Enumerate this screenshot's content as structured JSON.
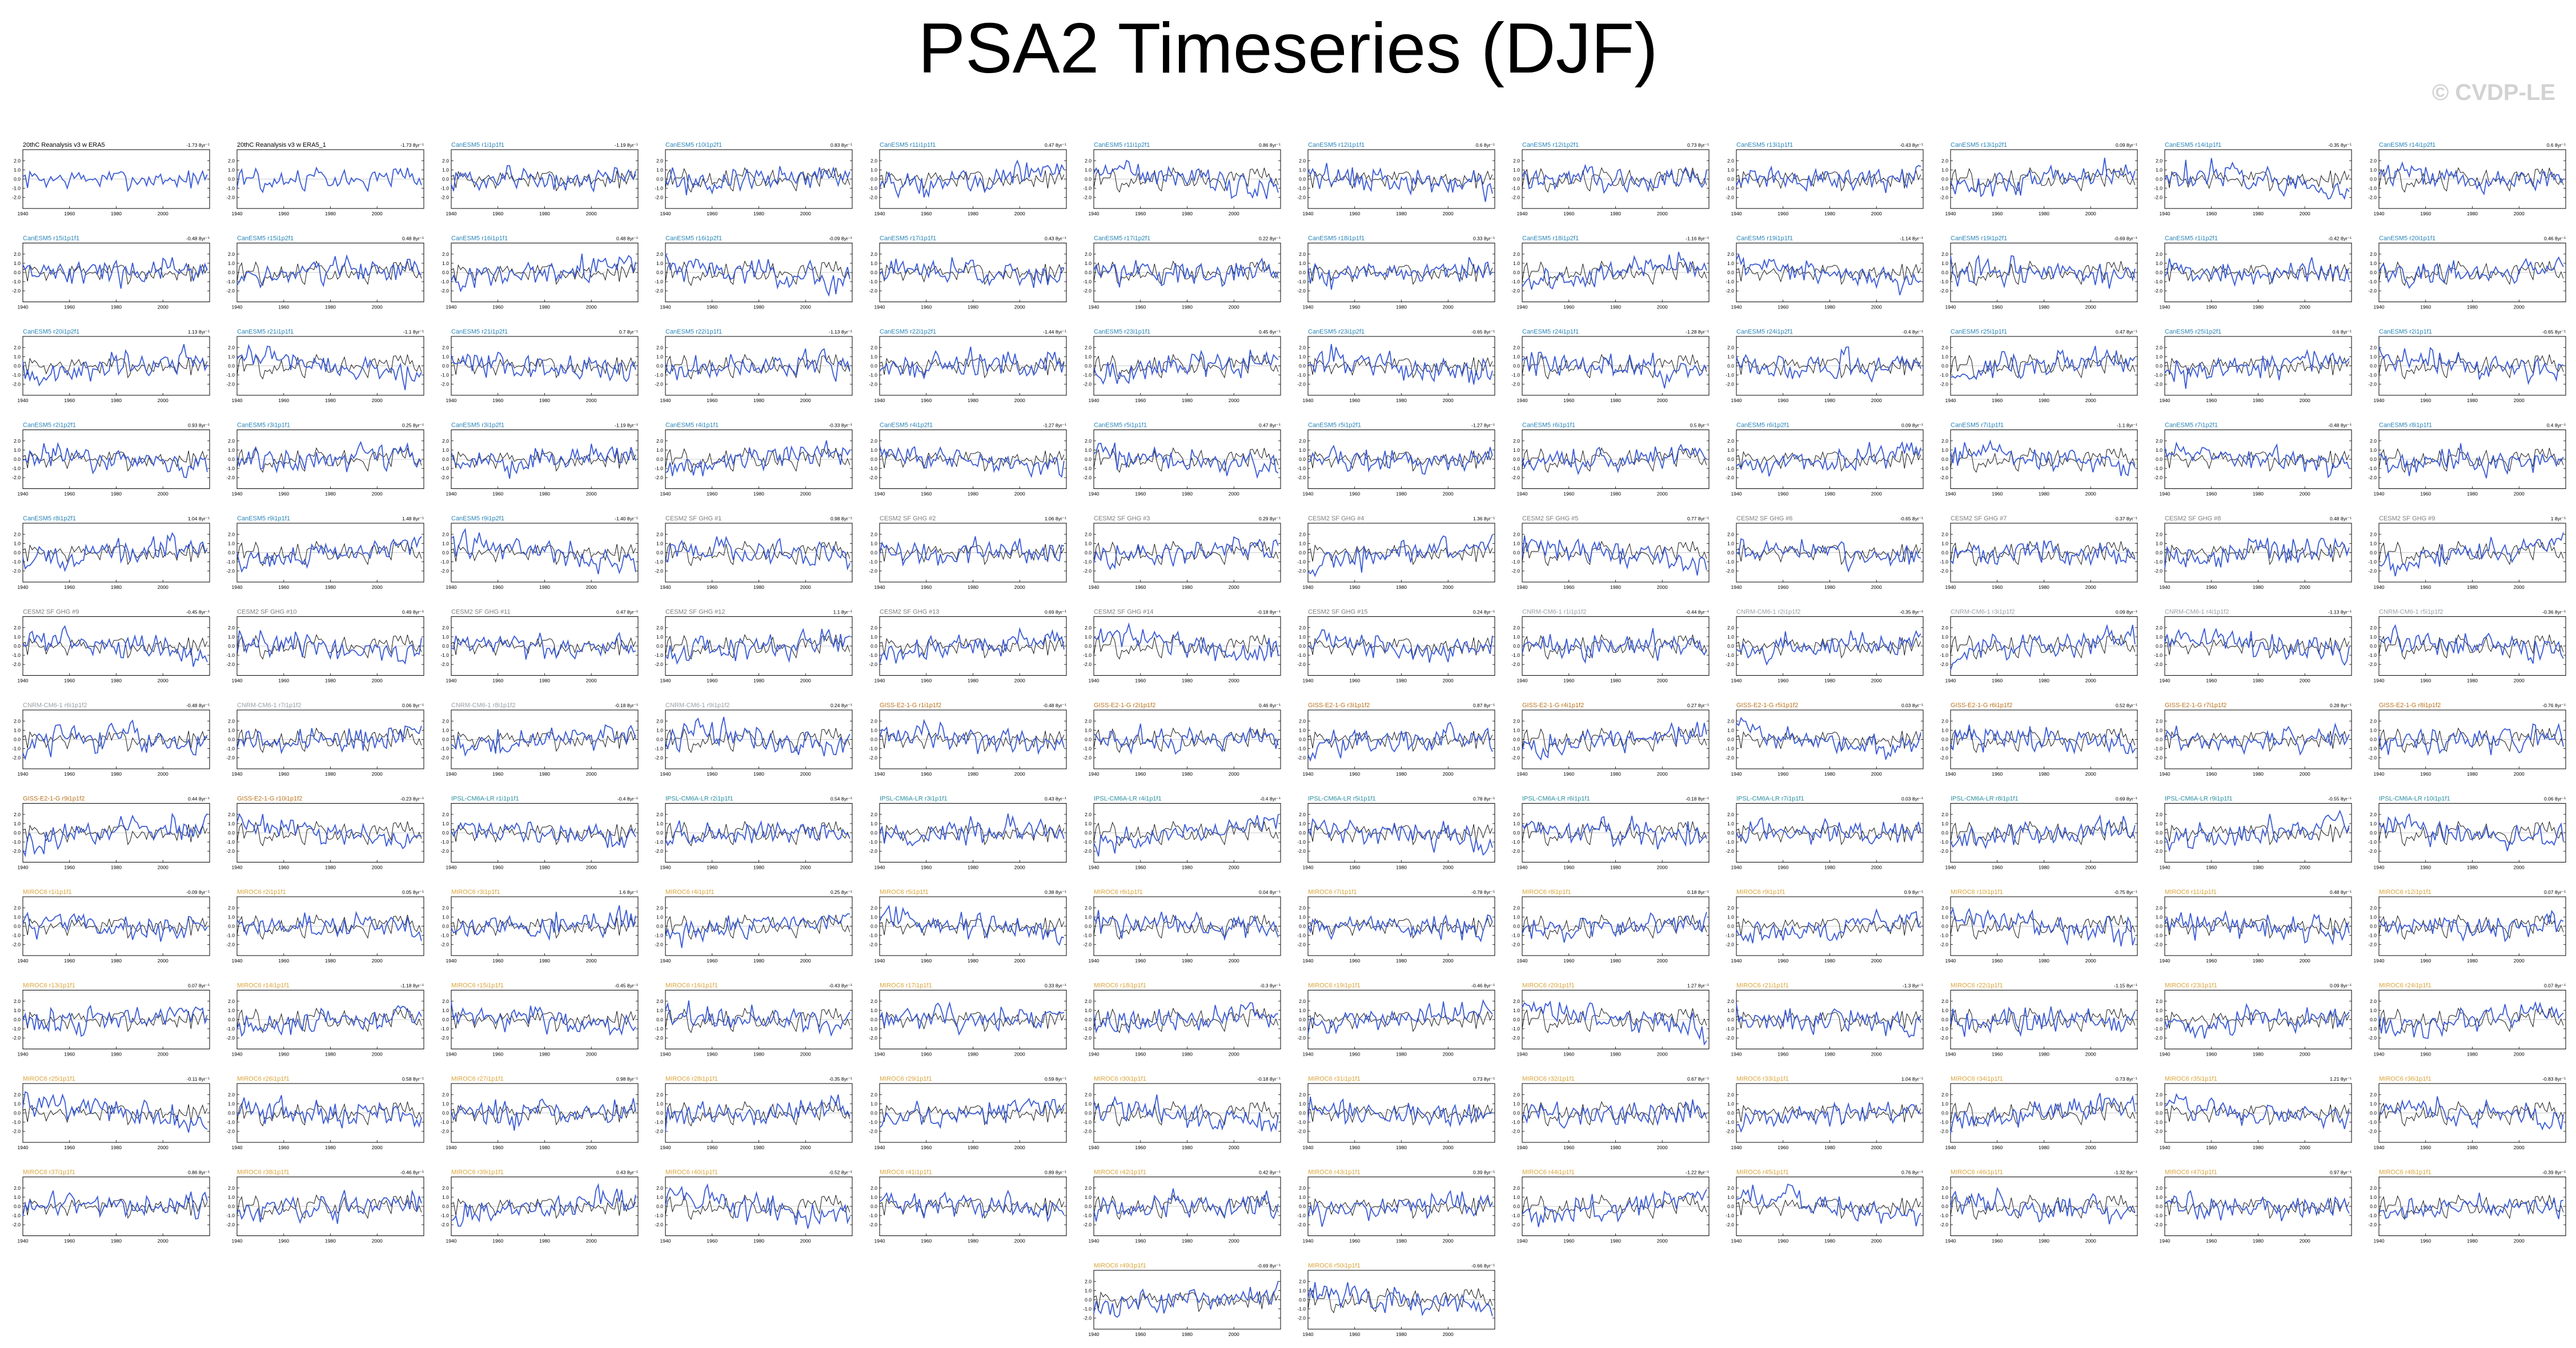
{
  "page": {
    "title": "PSA2 Timeseries (DJF)",
    "watermark": "© CVDP-LE"
  },
  "colors": {
    "model_line": "#3b5bd6",
    "obs_line": "#1a1a1a",
    "obs_title": "#000000",
    "cesm2_title": "#2a86b8",
    "cesm1_title": "#7f7f7f",
    "access_title": "#9aa0a6",
    "giss_title": "#b8721c",
    "ipsl_title": "#2a8fa0",
    "mpi_title": "#d9a53a",
    "trend_text": "#000000"
  },
  "chart_data": {
    "type": "line",
    "layout": "small multiples, 12 columns by 13 rows",
    "xlim": [
      1940,
      2020
    ],
    "x_ticks": [
      "1940",
      "1960",
      "1980",
      "2000"
    ],
    "ylim": [
      -3.2,
      3.2
    ],
    "y_ticks": [
      "2.0",
      "1.0",
      "0.0",
      "-1.0",
      "-2.0"
    ],
    "x_tick_rows": [
      0,
      1,
      2,
      3,
      4,
      5,
      6,
      7,
      8,
      9,
      10,
      11,
      12,
      20,
      21
    ],
    "panels": [
      {
        "title": "20thC Reanalysis v3 w ERA5",
        "trend": "-1.73 8yr⁻¹",
        "group": "obs"
      },
      {
        "title": "20thC Reanalysis v3 w ERA5_1",
        "trend": "-1.73 8yr⁻¹",
        "group": "obs"
      },
      {
        "title": "CanESM5 r1i1p1f1",
        "trend": "-1.19 8yr⁻¹",
        "group": "cesm2"
      },
      {
        "title": "CanESM5 r10i1p2f1",
        "trend": "0.83 8yr⁻¹",
        "group": "cesm2"
      },
      {
        "title": "CanESM5 r11i1p1f1",
        "trend": "0.47 8yr⁻¹",
        "group": "cesm2"
      },
      {
        "title": "CanESM5 r11i1p2f1",
        "trend": "0.86 8yr⁻¹",
        "group": "cesm2"
      },
      {
        "title": "CanESM5 r12i1p1f1",
        "trend": "0.6 8yr⁻¹",
        "group": "cesm2"
      },
      {
        "title": "CanESM5 r12i1p2f1",
        "trend": "0.73 8yr⁻¹",
        "group": "cesm2"
      },
      {
        "title": "CanESM5 r13i1p1f1",
        "trend": "-0.43 8yr⁻¹",
        "group": "cesm2"
      },
      {
        "title": "CanESM5 r13i1p2f1",
        "trend": "0.09 8yr⁻¹",
        "group": "cesm2"
      },
      {
        "title": "CanESM5 r14i1p1f1",
        "trend": "-0.35 8yr⁻¹",
        "group": "cesm2"
      },
      {
        "title": "CanESM5 r14i1p2f1",
        "trend": "0.6 8yr⁻¹",
        "group": "cesm2"
      },
      {
        "title": "CanESM5 r15i1p1f1",
        "trend": "-0.48 8yr⁻¹",
        "group": "cesm2"
      },
      {
        "title": "CanESM5 r15i1p2f1",
        "trend": "0.48 8yr⁻¹",
        "group": "cesm2"
      },
      {
        "title": "CanESM5 r16i1p1f1",
        "trend": "0.48 8yr⁻¹",
        "group": "cesm2"
      },
      {
        "title": "CanESM5 r16i1p2f1",
        "trend": "-0.09 8yr⁻¹",
        "group": "cesm2"
      },
      {
        "title": "CanESM5 r17i1p1f1",
        "trend": "0.43 8yr⁻¹",
        "group": "cesm2"
      },
      {
        "title": "CanESM5 r17i1p2f1",
        "trend": "0.22 8yr⁻¹",
        "group": "cesm2"
      },
      {
        "title": "CanESM5 r18i1p1f1",
        "trend": "0.33 8yr⁻¹",
        "group": "cesm2"
      },
      {
        "title": "CanESM5 r18i1p2f1",
        "trend": "-1.16 8yr⁻¹",
        "group": "cesm2"
      },
      {
        "title": "CanESM5 r19i1p1f1",
        "trend": "-1.14 8yr⁻¹",
        "group": "cesm2"
      },
      {
        "title": "CanESM5 r19i1p2f1",
        "trend": "-0.69 8yr⁻¹",
        "group": "cesm2"
      },
      {
        "title": "CanESM5 r1i1p2f1",
        "trend": "-0.42 8yr⁻¹",
        "group": "cesm2"
      },
      {
        "title": "CanESM5 r20i1p1f1",
        "trend": "0.46 8yr⁻¹",
        "group": "cesm2"
      },
      {
        "title": "CanESM5 r20i1p2f1",
        "trend": "1.13 8yr⁻¹",
        "group": "cesm2"
      },
      {
        "title": "CanESM5 r21i1p1f1",
        "trend": "-1.1 8yr⁻¹",
        "group": "cesm2"
      },
      {
        "title": "CanESM5 r21i1p2f1",
        "trend": "0.7 8yr⁻¹",
        "group": "cesm2"
      },
      {
        "title": "CanESM5 r22i1p1f1",
        "trend": "-1.13 8yr⁻¹",
        "group": "cesm2"
      },
      {
        "title": "CanESM5 r22i1p2f1",
        "trend": "-1.44 8yr⁻¹",
        "group": "cesm2"
      },
      {
        "title": "CanESM5 r23i1p1f1",
        "trend": "0.45 8yr⁻¹",
        "group": "cesm2"
      },
      {
        "title": "CanESM5 r23i1p2f1",
        "trend": "-0.65 8yr⁻¹",
        "group": "cesm2"
      },
      {
        "title": "CanESM5 r24i1p1f1",
        "trend": "-1.28 8yr⁻¹",
        "group": "cesm2"
      },
      {
        "title": "CanESM5 r24i1p2f1",
        "trend": "-0.4 8yr⁻¹",
        "group": "cesm2"
      },
      {
        "title": "CanESM5 r25i1p1f1",
        "trend": "0.47 8yr⁻¹",
        "group": "cesm2"
      },
      {
        "title": "CanESM5 r25i1p2f1",
        "trend": "0.6 8yr⁻¹",
        "group": "cesm2"
      },
      {
        "title": "CanESM5 r2i1p1f1",
        "trend": "-0.65 8yr⁻¹",
        "group": "cesm2"
      },
      {
        "title": "CanESM5 r2i1p2f1",
        "trend": "0.93 8yr⁻¹",
        "group": "cesm2"
      },
      {
        "title": "CanESM5 r3i1p1f1",
        "trend": "0.25 8yr⁻¹",
        "group": "cesm2"
      },
      {
        "title": "CanESM5 r3i1p2f1",
        "trend": "-1.19 8yr⁻¹",
        "group": "cesm2"
      },
      {
        "title": "CanESM5 r4i1p1f1",
        "trend": "-0.33 8yr⁻¹",
        "group": "cesm2"
      },
      {
        "title": "CanESM5 r4i1p2f1",
        "trend": "-1.27 8yr⁻¹",
        "group": "cesm2"
      },
      {
        "title": "CanESM5 r5i1p1f1",
        "trend": "0.47 8yr⁻¹",
        "group": "cesm2"
      },
      {
        "title": "CanESM5 r5i1p2f1",
        "trend": "-1.27 8yr⁻¹",
        "group": "cesm2"
      },
      {
        "title": "CanESM5 r6i1p1f1",
        "trend": "0.5 8yr⁻¹",
        "group": "cesm2"
      },
      {
        "title": "CanESM5 r6i1p2f1",
        "trend": "0.09 8yr⁻¹",
        "group": "cesm2"
      },
      {
        "title": "CanESM5 r7i1p1f1",
        "trend": "-1.1 8yr⁻¹",
        "group": "cesm2"
      },
      {
        "title": "CanESM5 r7i1p2f1",
        "trend": "-0.48 8yr⁻¹",
        "group": "cesm2"
      },
      {
        "title": "CanESM5 r8i1p1f1",
        "trend": "0.4 8yr⁻¹",
        "group": "cesm2"
      },
      {
        "title": "CanESM5 r8i1p2f1",
        "trend": "1.04 8yr⁻¹",
        "group": "cesm2"
      },
      {
        "title": "CanESM5 r9i1p1f1",
        "trend": "1.48 8yr⁻¹",
        "group": "cesm2"
      },
      {
        "title": "CanESM5 r9i1p2f1",
        "trend": "-1.40 8yr⁻¹",
        "group": "cesm2"
      },
      {
        "title": "CESM2 SF GHG #1",
        "trend": "0.98 8yr⁻¹",
        "group": "cesm1"
      },
      {
        "title": "CESM2 SF GHG #2",
        "trend": "1.06 8yr⁻¹",
        "group": "cesm1"
      },
      {
        "title": "CESM2 SF GHG #3",
        "trend": "0.29 8yr⁻¹",
        "group": "cesm1"
      },
      {
        "title": "CESM2 SF GHG #4",
        "trend": "1.36 8yr⁻¹",
        "group": "cesm1"
      },
      {
        "title": "CESM2 SF GHG #5",
        "trend": "0.77 8yr⁻¹",
        "group": "cesm1"
      },
      {
        "title": "CESM2 SF GHG #6",
        "trend": "-0.65 8yr⁻¹",
        "group": "cesm1"
      },
      {
        "title": "CESM2 SF GHG #7",
        "trend": "0.37 8yr⁻¹",
        "group": "cesm1"
      },
      {
        "title": "CESM2 SF GHG #8",
        "trend": "0.48 8yr⁻¹",
        "group": "cesm1"
      },
      {
        "title": "CESM2 SF GHG #9",
        "trend": "1 8yr⁻¹",
        "group": "cesm1"
      },
      {
        "title": "CESM2 SF GHG #9",
        "trend": "-0.45 8yr⁻¹",
        "group": "cesm1"
      },
      {
        "title": "CESM2 SF GHG #10",
        "trend": "0.49 8yr⁻¹",
        "group": "cesm1"
      },
      {
        "title": "CESM2 SF GHG #11",
        "trend": "0.47 8yr⁻¹",
        "group": "cesm1"
      },
      {
        "title": "CESM2 SF GHG #12",
        "trend": "1.1 8yr⁻¹",
        "group": "cesm1"
      },
      {
        "title": "CESM2 SF GHG #13",
        "trend": "0.69 8yr⁻¹",
        "group": "cesm1"
      },
      {
        "title": "CESM2 SF GHG #14",
        "trend": "-0.18 8yr⁻¹",
        "group": "cesm1"
      },
      {
        "title": "CESM2 SF GHG #15",
        "trend": "0.24 8yr⁻¹",
        "group": "cesm1"
      },
      {
        "title": "CNRM-CM6-1 r1i1p1f2",
        "trend": "-0.44 8yr⁻¹",
        "group": "access"
      },
      {
        "title": "CNRM-CM6-1 r2i1p1f2",
        "trend": "-0.35 8yr⁻¹",
        "group": "access"
      },
      {
        "title": "CNRM-CM6-1 r3i1p1f2",
        "trend": "0.09 8yr⁻¹",
        "group": "access"
      },
      {
        "title": "CNRM-CM6-1 r4i1p1f2",
        "trend": "-1.13 8yr⁻¹",
        "group": "access"
      },
      {
        "title": "CNRM-CM6-1 r5i1p1f2",
        "trend": "-0.36 8yr⁻¹",
        "group": "access"
      },
      {
        "title": "CNRM-CM6-1 r6i1p1f2",
        "trend": "-0.48 8yr⁻¹",
        "group": "access"
      },
      {
        "title": "CNRM-CM6-1 r7i1p1f2",
        "trend": "0.06 8yr⁻¹",
        "group": "access"
      },
      {
        "title": "CNRM-CM6-1 r8i1p1f2",
        "trend": "-0.18 8yr⁻¹",
        "group": "access"
      },
      {
        "title": "CNRM-CM6-1 r9i1p1f2",
        "trend": "0.24 8yr⁻¹",
        "group": "access"
      },
      {
        "title": "GISS-E2-1-G r1i1p1f2",
        "trend": "-0.48 8yr⁻¹",
        "group": "giss"
      },
      {
        "title": "GISS-E2-1-G r2i1p1f2",
        "trend": "0.46 8yr⁻¹",
        "group": "giss"
      },
      {
        "title": "GISS-E2-1-G r3i1p1f2",
        "trend": "0.87 8yr⁻¹",
        "group": "giss"
      },
      {
        "title": "GISS-E2-1-G r4i1p1f2",
        "trend": "0.27 8yr⁻¹",
        "group": "giss"
      },
      {
        "title": "GISS-E2-1-G r5i1p1f2",
        "trend": "0.03 8yr⁻¹",
        "group": "giss"
      },
      {
        "title": "GISS-E2-1-G r6i1p1f2",
        "trend": "0.52 8yr⁻¹",
        "group": "giss"
      },
      {
        "title": "GISS-E2-1-G r7i1p1f2",
        "trend": "0.28 8yr⁻¹",
        "group": "giss"
      },
      {
        "title": "GISS-E2-1-G r8i1p1f2",
        "trend": "-0.76 8yr⁻¹",
        "group": "giss"
      },
      {
        "title": "GISS-E2-1-G r9i1p1f2",
        "trend": "0.44 8yr⁻¹",
        "group": "giss"
      },
      {
        "title": "GISS-E2-1-G r10i1p1f2",
        "trend": "-0.23 8yr⁻¹",
        "group": "giss"
      },
      {
        "title": "IPSL-CM6A-LR r1i1p1f1",
        "trend": "-0.4 8yr⁻¹",
        "group": "ipsl"
      },
      {
        "title": "IPSL-CM6A-LR r2i1p1f1",
        "trend": "0.54 8yr⁻¹",
        "group": "ipsl"
      },
      {
        "title": "IPSL-CM6A-LR r3i1p1f1",
        "trend": "0.43 8yr⁻¹",
        "group": "ipsl"
      },
      {
        "title": "IPSL-CM6A-LR r4i1p1f1",
        "trend": "-0.4 8yr⁻¹",
        "group": "ipsl"
      },
      {
        "title": "IPSL-CM6A-LR r5i1p1f1",
        "trend": "0.78 8yr⁻¹",
        "group": "ipsl"
      },
      {
        "title": "IPSL-CM6A-LR r6i1p1f1",
        "trend": "-0.18 8yr⁻¹",
        "group": "ipsl"
      },
      {
        "title": "IPSL-CM6A-LR r7i1p1f1",
        "trend": "0.03 8yr⁻¹",
        "group": "ipsl"
      },
      {
        "title": "IPSL-CM6A-LR r8i1p1f1",
        "trend": "0.69 8yr⁻¹",
        "group": "ipsl"
      },
      {
        "title": "IPSL-CM6A-LR r9i1p1f1",
        "trend": "-0.55 8yr⁻¹",
        "group": "ipsl"
      },
      {
        "title": "IPSL-CM6A-LR r10i1p1f1",
        "trend": "0.06 8yr⁻¹",
        "group": "ipsl"
      },
      {
        "title": "MIROC6 r1i1p1f1",
        "trend": "-0.09 8yr⁻¹",
        "group": "mpi"
      },
      {
        "title": "MIROC6 r2i1p1f1",
        "trend": "0.05 8yr⁻¹",
        "group": "mpi"
      },
      {
        "title": "MIROC6 r3i1p1f1",
        "trend": "1.6 8yr⁻¹",
        "group": "mpi"
      },
      {
        "title": "MIROC6 r4i1p1f1",
        "trend": "0.25 8yr⁻¹",
        "group": "mpi"
      },
      {
        "title": "MIROC6 r5i1p1f1",
        "trend": "0.38 8yr⁻¹",
        "group": "mpi"
      },
      {
        "title": "MIROC6 r6i1p1f1",
        "trend": "0.04 8yr⁻¹",
        "group": "mpi"
      },
      {
        "title": "MIROC6 r7i1p1f1",
        "trend": "-0.78 8yr⁻¹",
        "group": "mpi"
      },
      {
        "title": "MIROC6 r8i1p1f1",
        "trend": "0.18 8yr⁻¹",
        "group": "mpi"
      },
      {
        "title": "MIROC6 r9i1p1f1",
        "trend": "0.9 8yr⁻¹",
        "group": "mpi"
      },
      {
        "title": "MIROC6 r10i1p1f1",
        "trend": "-0.75 8yr⁻¹",
        "group": "mpi"
      },
      {
        "title": "MIROC6 r11i1p1f1",
        "trend": "0.48 8yr⁻¹",
        "group": "mpi"
      },
      {
        "title": "MIROC6 r12i1p1f1",
        "trend": "0.07 8yr⁻¹",
        "group": "mpi"
      },
      {
        "title": "MIROC6 r13i1p1f1",
        "trend": "0.07 8yr⁻¹",
        "group": "mpi"
      },
      {
        "title": "MIROC6 r14i1p1f1",
        "trend": "-1.18 8yr⁻¹",
        "group": "mpi"
      },
      {
        "title": "MIROC6 r15i1p1f1",
        "trend": "-0.45 8yr⁻¹",
        "group": "mpi"
      },
      {
        "title": "MIROC6 r16i1p1f1",
        "trend": "-0.43 8yr⁻¹",
        "group": "mpi"
      },
      {
        "title": "MIROC6 r17i1p1f1",
        "trend": "0.33 8yr⁻¹",
        "group": "mpi"
      },
      {
        "title": "MIROC6 r18i1p1f1",
        "trend": "-0.3 8yr⁻¹",
        "group": "mpi"
      },
      {
        "title": "MIROC6 r19i1p1f1",
        "trend": "-0.46 8yr⁻¹",
        "group": "mpi"
      },
      {
        "title": "MIROC6 r20i1p1f1",
        "trend": "1.27 8yr⁻¹",
        "group": "mpi"
      },
      {
        "title": "MIROC6 r21i1p1f1",
        "trend": "-1.3 8yr⁻¹",
        "group": "mpi"
      },
      {
        "title": "MIROC6 r22i1p1f1",
        "trend": "-1.15 8yr⁻¹",
        "group": "mpi"
      },
      {
        "title": "MIROC6 r23i1p1f1",
        "trend": "0.09 8yr⁻¹",
        "group": "mpi"
      },
      {
        "title": "MIROC6 r24i1p1f1",
        "trend": "0.07 8yr⁻¹",
        "group": "mpi"
      },
      {
        "title": "MIROC6 r25i1p1f1",
        "trend": "-0.11 8yr⁻¹",
        "group": "mpi"
      },
      {
        "title": "MIROC6 r26i1p1f1",
        "trend": "0.58 8yr⁻¹",
        "group": "mpi"
      },
      {
        "title": "MIROC6 r27i1p1f1",
        "trend": "0.98 8yr⁻¹",
        "group": "mpi"
      },
      {
        "title": "MIROC6 r28i1p1f1",
        "trend": "-0.35 8yr⁻¹",
        "group": "mpi"
      },
      {
        "title": "MIROC6 r29i1p1f1",
        "trend": "0.59 8yr⁻¹",
        "group": "mpi"
      },
      {
        "title": "MIROC6 r30i1p1f1",
        "trend": "-0.18 8yr⁻¹",
        "group": "mpi"
      },
      {
        "title": "MIROC6 r31i1p1f1",
        "trend": "0.73 8yr⁻¹",
        "group": "mpi"
      },
      {
        "title": "MIROC6 r32i1p1f1",
        "trend": "0.67 8yr⁻¹",
        "group": "mpi"
      },
      {
        "title": "MIROC6 r33i1p1f1",
        "trend": "1.04 8yr⁻¹",
        "group": "mpi"
      },
      {
        "title": "MIROC6 r34i1p1f1",
        "trend": "0.73 8yr⁻¹",
        "group": "mpi"
      },
      {
        "title": "MIROC6 r35i1p1f1",
        "trend": "1.21 8yr⁻¹",
        "group": "mpi"
      },
      {
        "title": "MIROC6 r36i1p1f1",
        "trend": "-0.83 8yr⁻¹",
        "group": "mpi"
      },
      {
        "title": "MIROC6 r37i1p1f1",
        "trend": "0.86 8yr⁻¹",
        "group": "mpi"
      },
      {
        "title": "MIROC6 r38i1p1f1",
        "trend": "-0.46 8yr⁻¹",
        "group": "mpi"
      },
      {
        "title": "MIROC6 r39i1p1f1",
        "trend": "0.43 8yr⁻¹",
        "group": "mpi"
      },
      {
        "title": "MIROC6 r40i1p1f1",
        "trend": "-0.52 8yr⁻¹",
        "group": "mpi"
      },
      {
        "title": "MIROC6 r41i1p1f1",
        "trend": "0.89 8yr⁻¹",
        "group": "mpi"
      },
      {
        "title": "MIROC6 r42i1p1f1",
        "trend": "0.42 8yr⁻¹",
        "group": "mpi"
      },
      {
        "title": "MIROC6 r43i1p1f1",
        "trend": "0.39 8yr⁻¹",
        "group": "mpi"
      },
      {
        "title": "MIROC6 r44i1p1f1",
        "trend": "-1.22 8yr⁻¹",
        "group": "mpi"
      },
      {
        "title": "MIROC6 r45i1p1f1",
        "trend": "0.76 8yr⁻¹",
        "group": "mpi"
      },
      {
        "title": "MIROC6 r46i1p1f1",
        "trend": "-1.32 8yr⁻¹",
        "group": "mpi"
      },
      {
        "title": "MIROC6 r47i1p1f1",
        "trend": "0.97 8yr⁻¹",
        "group": "mpi"
      },
      {
        "title": "MIROC6 r48i1p1f1",
        "trend": "-0.39 8yr⁻¹",
        "group": "mpi"
      },
      {
        "title": "MIROC6 r49i1p1f1",
        "trend": "-0.69 8yr⁻¹",
        "group": "mpi",
        "col": 5
      },
      {
        "title": "MIROC6 r50i1p1f1",
        "trend": "-0.66 8yr⁻¹",
        "group": "mpi",
        "col": 6
      }
    ]
  }
}
